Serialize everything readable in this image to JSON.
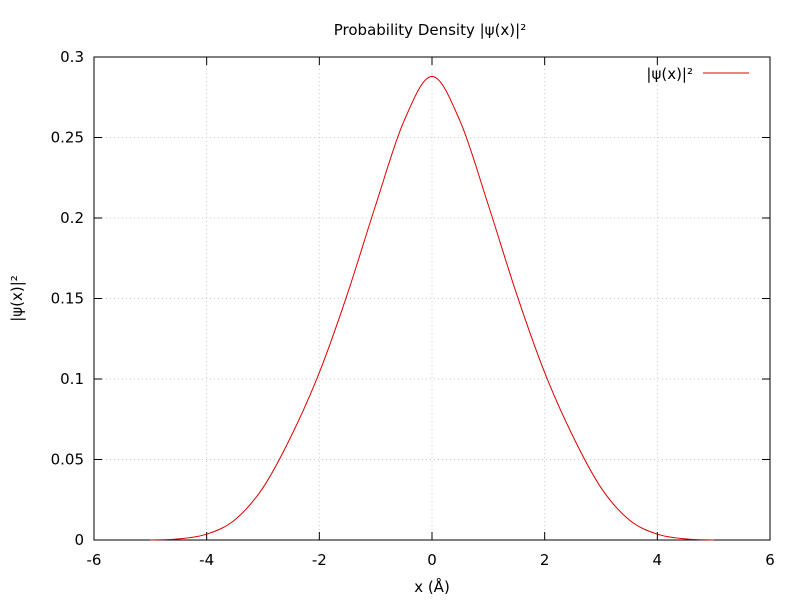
{
  "chart_data": {
    "type": "line",
    "title": "Probability Density |ψ(x)|²",
    "xlabel": "x (Å)",
    "ylabel": "|ψ(x)|²",
    "xlim": [
      -6,
      6
    ],
    "ylim": [
      0,
      0.3
    ],
    "x_ticks": [
      -6,
      -4,
      -2,
      0,
      2,
      4,
      6
    ],
    "y_ticks": [
      0,
      0.05,
      0.1,
      0.15,
      0.2,
      0.25,
      0.3
    ],
    "grid": true,
    "legend_position": "top-right",
    "series": [
      {
        "name": "|ψ(x)|²",
        "color": "#dd0000",
        "x": [
          -5,
          -4.5,
          -4,
          -3.5,
          -3,
          -2.5,
          -2,
          -1.5,
          -1,
          -0.5,
          0,
          0.5,
          1,
          1.5,
          2,
          2.5,
          3,
          3.5,
          4,
          4.5,
          5
        ],
        "y": [
          0.0,
          0.0007,
          0.0036,
          0.0125,
          0.0325,
          0.0645,
          0.104,
          0.153,
          0.208,
          0.26,
          0.288,
          0.26,
          0.208,
          0.153,
          0.104,
          0.0645,
          0.0325,
          0.0125,
          0.0036,
          0.0007,
          0.0
        ]
      }
    ]
  }
}
